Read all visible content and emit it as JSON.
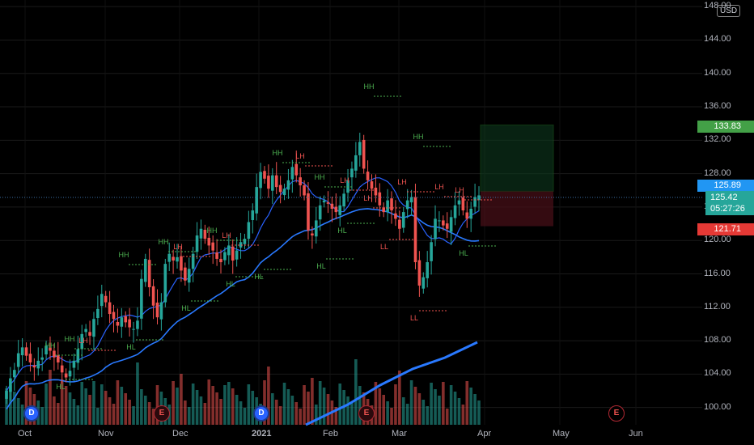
{
  "currency": "USD",
  "price_axis": {
    "ticks": [
      "148.00",
      "144.00",
      "140.00",
      "136.00",
      "132.00",
      "128.00",
      "124.00",
      "120.00",
      "116.00",
      "112.00",
      "108.00",
      "104.00",
      "100.00"
    ],
    "min": 99.0,
    "max": 148.5
  },
  "time_axis": {
    "ticks": [
      "Oct",
      "Nov",
      "Dec",
      "2021",
      "Feb",
      "Mar",
      "Apr",
      "May",
      "Jun"
    ]
  },
  "colors": {
    "up": "#26a69a",
    "down": "#ef5350",
    "green_label": "#4caf50",
    "bg": "#000000",
    "ma_fast": "#2962ff",
    "ma_slow": "#2979ff",
    "target_label": "#43a047",
    "stop_label": "#e53935",
    "last_label": "#2196f3"
  },
  "price_labels": {
    "target": "133.83",
    "last": "125.89",
    "current": "125.42",
    "countdown": "05:27:26",
    "stop": "121.71"
  },
  "events": [
    {
      "type": "D",
      "label": "D"
    },
    {
      "type": "E",
      "label": "E"
    },
    {
      "type": "D",
      "label": "D"
    },
    {
      "type": "E",
      "label": "E"
    },
    {
      "type": "E",
      "label": "E"
    }
  ],
  "pivot_labels": [
    "HH",
    "HL",
    "HH",
    "LH",
    "HH",
    "HL",
    "HH",
    "LH",
    "HL",
    "HH",
    "LH",
    "HL",
    "HH",
    "LH",
    "HH",
    "HL",
    "LH",
    "HL",
    "HH",
    "LH",
    "LL",
    "HH",
    "LH",
    "LH",
    "HL",
    "LL",
    "LH",
    "HL"
  ],
  "chart_data": {
    "type": "candlestick",
    "x_range": [
      "2020-10-01",
      "2021-06-30"
    ],
    "y_range": [
      99.0,
      148.5
    ],
    "series": [
      {
        "name": "price",
        "kind": "candles",
        "closes": [
          102,
          103.5,
          104.5,
          106.5,
          107.2,
          106.2,
          105.4,
          104.8,
          105.6,
          106,
          107.4,
          106.8,
          106,
          105.4,
          104.2,
          103.6,
          104.4,
          105.6,
          107,
          108.8,
          109.4,
          108.6,
          110.6,
          111.8,
          113.6,
          112.6,
          111.2,
          110.6,
          109.8,
          110.8,
          110.2,
          109.6,
          109.4,
          110.4,
          115.4,
          117.8,
          114.4,
          112.2,
          110.8,
          112.6,
          117.2,
          118.4,
          117.6,
          118,
          116.4,
          115.2,
          116.6,
          118.4,
          120.6,
          121.4,
          120.2,
          119.4,
          118.8,
          117.8,
          117.4,
          118.6,
          119.4,
          117.6,
          118.8,
          119.8,
          120.2,
          122.2,
          123.6,
          126.4,
          128.2,
          127.4,
          126.2,
          127.8,
          126.4,
          125.8,
          126.2,
          127.2,
          128.8,
          127.8,
          126.6,
          125.4,
          121.2,
          120.6,
          122.4,
          124.2,
          124.8,
          124.4,
          123.8,
          123.4,
          124.2,
          125.6,
          127.2,
          128.6,
          130.2,
          131.8,
          128.6,
          127.2,
          126.2,
          125.4,
          124.2,
          123.4,
          124.8,
          123.6,
          122.6,
          121.4,
          123.4,
          124.8,
          125.2,
          117.4,
          114.6,
          115.6,
          117.4,
          119.8,
          122.6,
          122.4,
          121.8,
          121.4,
          122.8,
          124.2,
          124.8,
          123.6,
          122.6,
          123.8,
          125.2,
          125.4
        ],
        "labels_in_order_of_swing_points": [
          "HH",
          "HL",
          "HH",
          "LH",
          "HH",
          "HL",
          "HH",
          "LH",
          "HL",
          "HH",
          "LH",
          "HL",
          "HH",
          "LH",
          "HH",
          "HL",
          "LH",
          "HL",
          "HH",
          "LH",
          "LL",
          "HH",
          "LH",
          "LH",
          "HL",
          "LL",
          "LH",
          "HL"
        ]
      },
      {
        "name": "ma_fast",
        "kind": "line",
        "color": "#2962ff"
      },
      {
        "name": "ma_slow",
        "kind": "line",
        "color": "#2979ff"
      },
      {
        "name": "volume",
        "kind": "bars"
      }
    ],
    "position": {
      "entry": 125.89,
      "target": 133.83,
      "stop": 121.71
    }
  }
}
